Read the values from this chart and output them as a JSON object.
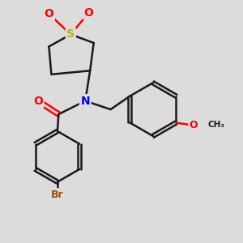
{
  "bg_color": "#dcdcdc",
  "bond_color": "#1a1a1a",
  "bond_width": 1.8,
  "atom_colors": {
    "S": "#b8b800",
    "O": "#ff0000",
    "N": "#0000ff",
    "Br": "#a05000",
    "C": "#1a1a1a"
  }
}
